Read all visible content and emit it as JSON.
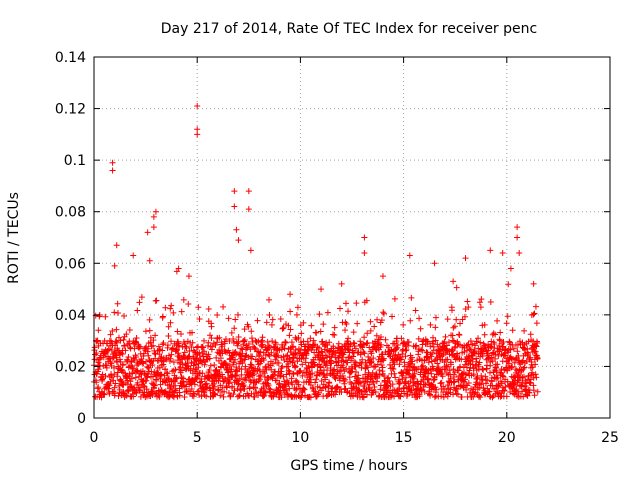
{
  "chart_data": {
    "type": "scatter",
    "title": "Day 217 of 2014, Rate Of TEC Index for receiver penc",
    "xlabel": "GPS time / hours",
    "ylabel": "ROTI / TECUs",
    "xlim": [
      0,
      25
    ],
    "ylim": [
      0,
      0.14
    ],
    "x_ticks": [
      0,
      5,
      10,
      15,
      20,
      25
    ],
    "x_tick_labels": [
      "0",
      "5",
      "10",
      "15",
      "20",
      "25"
    ],
    "y_ticks": [
      0,
      0.02,
      0.04,
      0.06,
      0.08,
      0.1,
      0.12,
      0.14
    ],
    "y_tick_labels": [
      "0",
      "0.02",
      "0.04",
      "0.06",
      "0.08",
      "0.1",
      "0.12",
      "0.14"
    ],
    "grid": true,
    "marker": "+",
    "color": "#ff0000",
    "series": [
      {
        "name": "ROTI",
        "x_range": [
          0,
          21.5
        ],
        "typical_band": [
          0.008,
          0.03
        ],
        "notable_points": [
          {
            "x": 0.9,
            "y": 0.099
          },
          {
            "x": 0.9,
            "y": 0.096
          },
          {
            "x": 1.1,
            "y": 0.067
          },
          {
            "x": 1.0,
            "y": 0.059
          },
          {
            "x": 1.9,
            "y": 0.063
          },
          {
            "x": 2.6,
            "y": 0.072
          },
          {
            "x": 2.7,
            "y": 0.061
          },
          {
            "x": 3.0,
            "y": 0.08
          },
          {
            "x": 2.9,
            "y": 0.078
          },
          {
            "x": 2.9,
            "y": 0.074
          },
          {
            "x": 4.1,
            "y": 0.058
          },
          {
            "x": 4.6,
            "y": 0.055
          },
          {
            "x": 5.0,
            "y": 0.121
          },
          {
            "x": 5.0,
            "y": 0.112
          },
          {
            "x": 5.0,
            "y": 0.11
          },
          {
            "x": 6.8,
            "y": 0.088
          },
          {
            "x": 6.8,
            "y": 0.082
          },
          {
            "x": 7.5,
            "y": 0.088
          },
          {
            "x": 7.5,
            "y": 0.081
          },
          {
            "x": 6.9,
            "y": 0.073
          },
          {
            "x": 7.0,
            "y": 0.069
          },
          {
            "x": 7.6,
            "y": 0.065
          },
          {
            "x": 13.1,
            "y": 0.07
          },
          {
            "x": 13.1,
            "y": 0.064
          },
          {
            "x": 15.3,
            "y": 0.063
          },
          {
            "x": 16.5,
            "y": 0.06
          },
          {
            "x": 18.0,
            "y": 0.062
          },
          {
            "x": 19.2,
            "y": 0.065
          },
          {
            "x": 19.8,
            "y": 0.064
          },
          {
            "x": 20.5,
            "y": 0.074
          },
          {
            "x": 20.5,
            "y": 0.07
          },
          {
            "x": 20.6,
            "y": 0.064
          },
          {
            "x": 20.2,
            "y": 0.058
          },
          {
            "x": 11.0,
            "y": 0.05
          },
          {
            "x": 9.5,
            "y": 0.048
          },
          {
            "x": 12.0,
            "y": 0.052
          },
          {
            "x": 14.0,
            "y": 0.055
          },
          {
            "x": 17.4,
            "y": 0.053
          },
          {
            "x": 21.3,
            "y": 0.052
          }
        ]
      }
    ]
  }
}
